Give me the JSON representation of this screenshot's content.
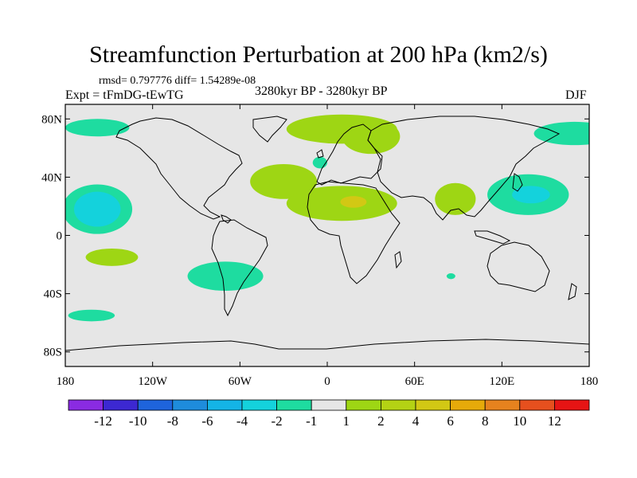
{
  "title": "Streamfunction Perturbation at 200 hPa (km2/s)",
  "stats": "rmsd= 0.797776  diff= 1.54289e-08",
  "experiment": "Expt = tFmDG-tEwTG",
  "period": "3280kyr BP - 3280kyr BP",
  "season": "DJF",
  "map_domain": {
    "lon_range": [
      -180,
      180
    ],
    "lat_range": [
      -90,
      90
    ]
  },
  "lat_ticks": [
    {
      "lat": 80,
      "label": "80N"
    },
    {
      "lat": 40,
      "label": "40N"
    },
    {
      "lat": 0,
      "label": "0"
    },
    {
      "lat": -40,
      "label": "40S"
    },
    {
      "lat": -80,
      "label": "80S"
    }
  ],
  "lon_ticks": [
    {
      "lon": -180,
      "label": "180"
    },
    {
      "lon": -120,
      "label": "120W"
    },
    {
      "lon": -60,
      "label": "60W"
    },
    {
      "lon": 0,
      "label": "0"
    },
    {
      "lon": 60,
      "label": "60E"
    },
    {
      "lon": 120,
      "label": "120E"
    },
    {
      "lon": 180,
      "label": "180"
    }
  ],
  "colorbar": {
    "colors": [
      "#8a2be2",
      "#3c28d2",
      "#1e64dc",
      "#1e8cdc",
      "#14b4e6",
      "#14d2dc",
      "#1edca0",
      "#e6e6e6",
      "#9ed614",
      "#b4d214",
      "#d2c814",
      "#e6aa0a",
      "#e6821e",
      "#e6501e",
      "#e61414"
    ],
    "labels": [
      "-12",
      "-10",
      "-8",
      "-6",
      "-4",
      "-2",
      "-1",
      "1",
      "2",
      "4",
      "6",
      "8",
      "10",
      "12"
    ]
  },
  "anomalies": [
    {
      "name": "arctic-atlantic-positive",
      "level": 1,
      "lon": 10,
      "lat": 73,
      "rlon": 38,
      "rlat": 10
    },
    {
      "name": "scandinavia-positive",
      "level": 1,
      "lon": 30,
      "lat": 68,
      "rlon": 20,
      "rlat": 12
    },
    {
      "name": "north-atlantic-positive",
      "level": 1,
      "lon": -30,
      "lat": 37,
      "rlon": 23,
      "rlat": 12
    },
    {
      "name": "sahara-positive",
      "level": 1,
      "lon": 10,
      "lat": 22,
      "rlon": 38,
      "rlat": 12
    },
    {
      "name": "sahara-core-positive",
      "level": 3,
      "lon": 18,
      "lat": 23,
      "rlon": 9,
      "rlat": 4
    },
    {
      "name": "india-positive",
      "level": 1,
      "lon": 88,
      "lat": 25,
      "rlon": 14,
      "rlat": 11
    },
    {
      "name": "east-asia-negative",
      "level": -1,
      "lon": 138,
      "lat": 28,
      "rlon": 28,
      "rlat": 14
    },
    {
      "name": "japan-core-negative",
      "level": -2,
      "lon": 140,
      "lat": 28,
      "rlon": 13,
      "rlat": 6
    },
    {
      "name": "north-pacific-negative",
      "level": -1,
      "lon": -158,
      "lat": 18,
      "rlon": 24,
      "rlat": 17
    },
    {
      "name": "north-pacific-core-negative",
      "level": -2,
      "lon": -158,
      "lat": 18,
      "rlon": 16,
      "rlat": 12
    },
    {
      "name": "arctic-pacific-negative",
      "level": -1,
      "lon": -158,
      "lat": 74,
      "rlon": 22,
      "rlat": 6
    },
    {
      "name": "arctic-east-negative",
      "level": -1,
      "lon": 170,
      "lat": 70,
      "rlon": 28,
      "rlat": 8
    },
    {
      "name": "north-sea-negative",
      "level": -1,
      "lon": -5,
      "lat": 50,
      "rlon": 5,
      "rlat": 4
    },
    {
      "name": "south-pacific-positive",
      "level": 1,
      "lon": -148,
      "lat": -15,
      "rlon": 18,
      "rlat": 6
    },
    {
      "name": "south-america-negative",
      "level": -1,
      "lon": -70,
      "lat": -28,
      "rlon": 26,
      "rlat": 10
    },
    {
      "name": "southern-ocean-negative",
      "level": -1,
      "lon": -162,
      "lat": -55,
      "rlon": 16,
      "rlat": 4
    },
    {
      "name": "indian-ocean-negative",
      "level": -1,
      "lon": 85,
      "lat": -28,
      "rlon": 3,
      "rlat": 2
    }
  ]
}
